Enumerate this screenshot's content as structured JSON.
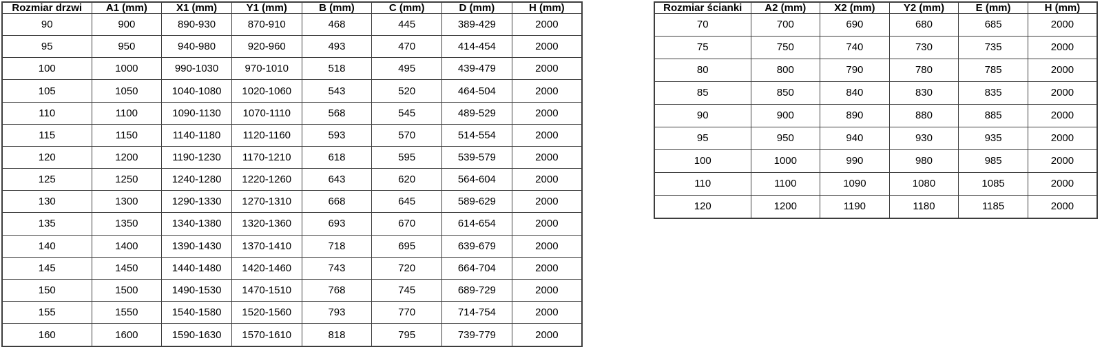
{
  "colors": {
    "border-color": "#3d3d3d",
    "text-color": "#000000",
    "bg-color": "#ffffff"
  },
  "doors_table": {
    "headers": [
      "Rozmiar drzwi",
      "A1 (mm)",
      "X1 (mm)",
      "Y1 (mm)",
      "B (mm)",
      "C (mm)",
      "D (mm)",
      "H (mm)"
    ],
    "rows": [
      [
        "90",
        "900",
        "890-930",
        "870-910",
        "468",
        "445",
        "389-429",
        "2000"
      ],
      [
        "95",
        "950",
        "940-980",
        "920-960",
        "493",
        "470",
        "414-454",
        "2000"
      ],
      [
        "100",
        "1000",
        "990-1030",
        "970-1010",
        "518",
        "495",
        "439-479",
        "2000"
      ],
      [
        "105",
        "1050",
        "1040-1080",
        "1020-1060",
        "543",
        "520",
        "464-504",
        "2000"
      ],
      [
        "110",
        "1100",
        "1090-1130",
        "1070-1110",
        "568",
        "545",
        "489-529",
        "2000"
      ],
      [
        "115",
        "1150",
        "1140-1180",
        "1120-1160",
        "593",
        "570",
        "514-554",
        "2000"
      ],
      [
        "120",
        "1200",
        "1190-1230",
        "1170-1210",
        "618",
        "595",
        "539-579",
        "2000"
      ],
      [
        "125",
        "1250",
        "1240-1280",
        "1220-1260",
        "643",
        "620",
        "564-604",
        "2000"
      ],
      [
        "130",
        "1300",
        "1290-1330",
        "1270-1310",
        "668",
        "645",
        "589-629",
        "2000"
      ],
      [
        "135",
        "1350",
        "1340-1380",
        "1320-1360",
        "693",
        "670",
        "614-654",
        "2000"
      ],
      [
        "140",
        "1400",
        "1390-1430",
        "1370-1410",
        "718",
        "695",
        "639-679",
        "2000"
      ],
      [
        "145",
        "1450",
        "1440-1480",
        "1420-1460",
        "743",
        "720",
        "664-704",
        "2000"
      ],
      [
        "150",
        "1500",
        "1490-1530",
        "1470-1510",
        "768",
        "745",
        "689-729",
        "2000"
      ],
      [
        "155",
        "1550",
        "1540-1580",
        "1520-1560",
        "793",
        "770",
        "714-754",
        "2000"
      ],
      [
        "160",
        "1600",
        "1590-1630",
        "1570-1610",
        "818",
        "795",
        "739-779",
        "2000"
      ]
    ]
  },
  "walls_table": {
    "headers": [
      "Rozmiar ścianki",
      "A2 (mm)",
      "X2 (mm)",
      "Y2 (mm)",
      "E (mm)",
      "H (mm)"
    ],
    "rows": [
      [
        "70",
        "700",
        "690",
        "680",
        "685",
        "2000"
      ],
      [
        "75",
        "750",
        "740",
        "730",
        "735",
        "2000"
      ],
      [
        "80",
        "800",
        "790",
        "780",
        "785",
        "2000"
      ],
      [
        "85",
        "850",
        "840",
        "830",
        "835",
        "2000"
      ],
      [
        "90",
        "900",
        "890",
        "880",
        "885",
        "2000"
      ],
      [
        "95",
        "950",
        "940",
        "930",
        "935",
        "2000"
      ],
      [
        "100",
        "1000",
        "990",
        "980",
        "985",
        "2000"
      ],
      [
        "110",
        "1100",
        "1090",
        "1080",
        "1085",
        "2000"
      ],
      [
        "120",
        "1200",
        "1190",
        "1180",
        "1185",
        "2000"
      ]
    ]
  }
}
